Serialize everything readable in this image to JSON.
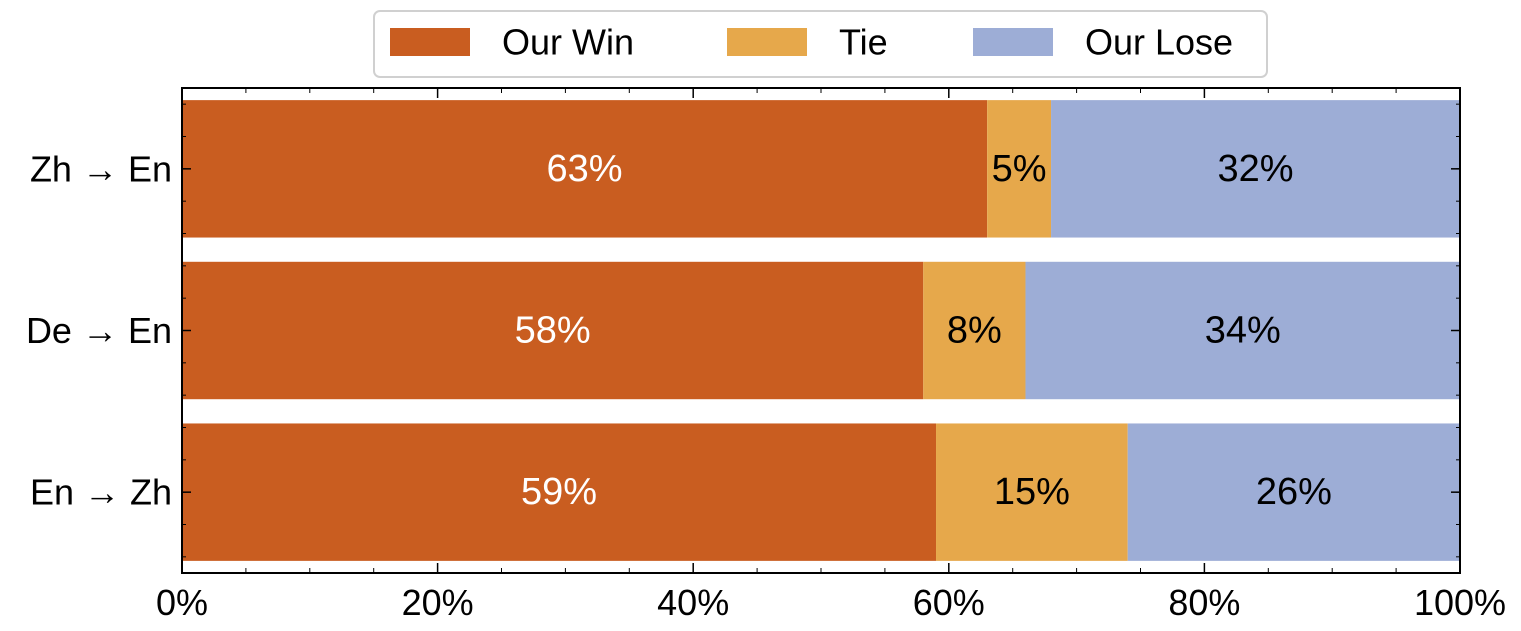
{
  "chart_data": {
    "type": "bar",
    "orientation": "horizontal",
    "stacked": true,
    "categories": [
      "Zh → En",
      "De → En",
      "En → Zh"
    ],
    "series": [
      {
        "name": "Our Win",
        "values": [
          63,
          58,
          59
        ],
        "labels": [
          "63%",
          "58%",
          "59%"
        ],
        "color": "#c95d20",
        "label_color": "#ffffff"
      },
      {
        "name": "Tie",
        "values": [
          5,
          8,
          15
        ],
        "labels": [
          "5%",
          "8%",
          "15%"
        ],
        "color": "#e6a84b",
        "label_color": "#000000"
      },
      {
        "name": "Our Lose",
        "values": [
          32,
          34,
          26
        ],
        "labels": [
          "32%",
          "34%",
          "26%"
        ],
        "color": "#9dadd6",
        "label_color": "#000000"
      }
    ],
    "xlim": [
      0,
      100
    ],
    "xticks": [
      0,
      20,
      40,
      60,
      80,
      100
    ],
    "xtick_labels": [
      "0%",
      "20%",
      "40%",
      "60%",
      "80%",
      "100%"
    ],
    "xlabel": "",
    "ylabel": "",
    "grid": false,
    "legend_placement": "top-center"
  }
}
